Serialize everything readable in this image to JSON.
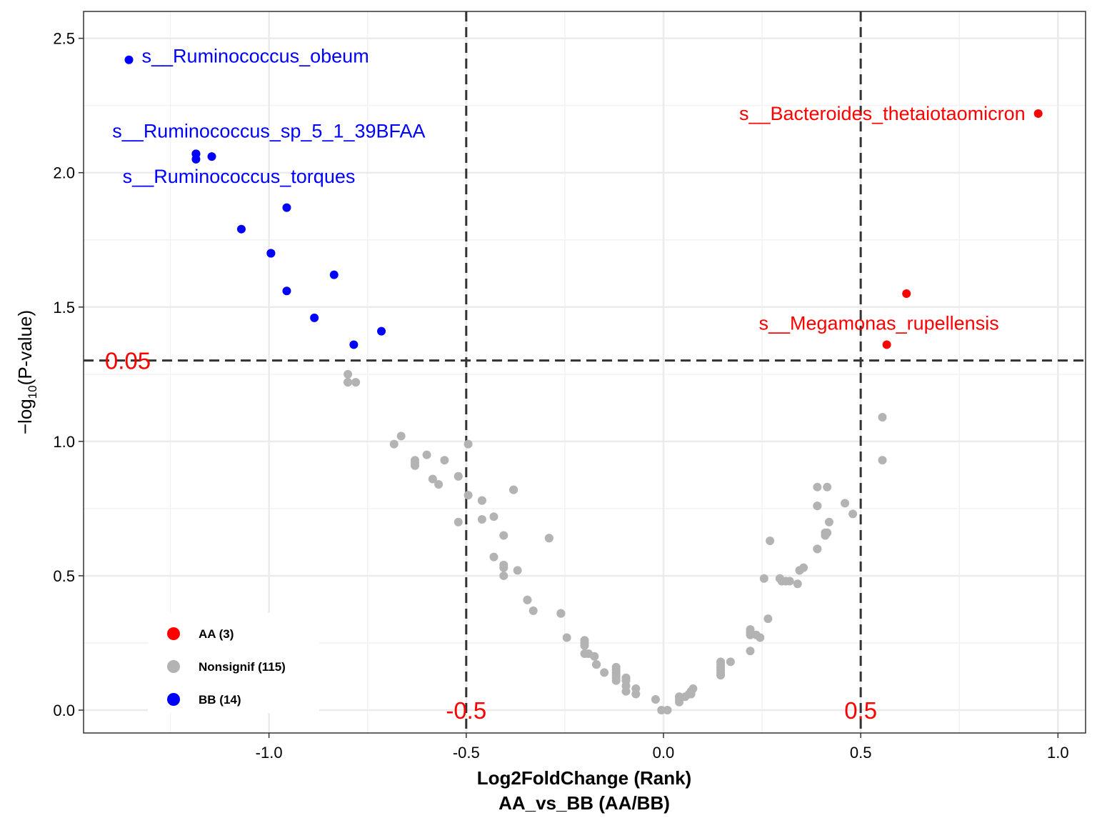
{
  "chart_data": {
    "type": "scatter",
    "xlabel": "Log2FoldChange (Rank)",
    "xlabel2": "AA_vs_BB (AA/BB)",
    "ylabel": "-log10(P-value)",
    "xlim": [
      -1.47,
      1.07
    ],
    "ylim": [
      -0.085,
      2.6
    ],
    "x_ticks": [
      {
        "value": -1.0,
        "label": "-1.0"
      },
      {
        "value": -0.5,
        "label": "-0.5"
      },
      {
        "value": 0.0,
        "label": "0.0"
      },
      {
        "value": 0.5,
        "label": "0.5"
      },
      {
        "value": 1.0,
        "label": "1.0"
      }
    ],
    "y_ticks": [
      {
        "value": 0.0,
        "label": "0.0"
      },
      {
        "value": 0.5,
        "label": "0.5"
      },
      {
        "value": 1.0,
        "label": "1.0"
      },
      {
        "value": 1.5,
        "label": "1.5"
      },
      {
        "value": 2.0,
        "label": "2.0"
      },
      {
        "value": 2.5,
        "label": "2.5"
      }
    ],
    "grid": true,
    "legend_position": "bottom-left",
    "colors": {
      "AA": "#ff0000",
      "Nonsignif": "#b3b3b3",
      "BB": "#0000ff"
    },
    "reference_lines": [
      {
        "axis": "y",
        "value": 1.301,
        "label": "0.05"
      },
      {
        "axis": "x",
        "value": -0.5,
        "label": "-0.5"
      },
      {
        "axis": "x",
        "value": 0.5,
        "label": "0.5"
      }
    ],
    "series": [
      {
        "name": "AA (3)",
        "group": "AA",
        "points": [
          [
            0.95,
            2.22
          ],
          [
            0.616,
            1.55
          ],
          [
            0.566,
            1.36
          ]
        ]
      },
      {
        "name": "Nonsignif (115)",
        "group": "Nonsignif",
        "points": [
          [
            -0.8,
            1.25
          ],
          [
            -0.8,
            1.22
          ],
          [
            -0.78,
            1.22
          ],
          [
            -0.665,
            1.02
          ],
          [
            -0.683,
            0.99
          ],
          [
            -0.6,
            0.95
          ],
          [
            -0.63,
            0.93
          ],
          [
            -0.63,
            0.91
          ],
          [
            -0.555,
            0.93
          ],
          [
            -0.585,
            0.86
          ],
          [
            -0.57,
            0.84
          ],
          [
            -0.52,
            0.87
          ],
          [
            -0.495,
            0.99
          ],
          [
            -0.495,
            0.8
          ],
          [
            -0.46,
            0.78
          ],
          [
            -0.38,
            0.82
          ],
          [
            -0.38,
            0.82
          ],
          [
            -0.52,
            0.7
          ],
          [
            -0.46,
            0.71
          ],
          [
            -0.43,
            0.72
          ],
          [
            -0.405,
            0.65
          ],
          [
            -0.29,
            0.64
          ],
          [
            -0.29,
            0.64
          ],
          [
            -0.43,
            0.57
          ],
          [
            -0.405,
            0.53
          ],
          [
            -0.37,
            0.52
          ],
          [
            -0.405,
            0.5
          ],
          [
            -0.345,
            0.41
          ],
          [
            -0.33,
            0.37
          ],
          [
            -0.26,
            0.36
          ],
          [
            -0.26,
            0.36
          ],
          [
            -0.245,
            0.27
          ],
          [
            -0.2,
            0.26
          ],
          [
            -0.2,
            0.24
          ],
          [
            -0.2,
            0.21
          ],
          [
            -0.19,
            0.21
          ],
          [
            -0.175,
            0.2
          ],
          [
            -0.17,
            0.17
          ],
          [
            -0.15,
            0.14
          ],
          [
            -0.12,
            0.16
          ],
          [
            -0.12,
            0.15
          ],
          [
            -0.12,
            0.13
          ],
          [
            -0.12,
            0.12
          ],
          [
            -0.12,
            0.11
          ],
          [
            -0.095,
            0.12
          ],
          [
            -0.095,
            0.12
          ],
          [
            -0.095,
            0.11
          ],
          [
            -0.095,
            0.09
          ],
          [
            -0.095,
            0.07
          ],
          [
            -0.07,
            0.08
          ],
          [
            -0.07,
            0.06
          ],
          [
            -0.02,
            0.04
          ],
          [
            -0.005,
            0.0
          ],
          [
            0.01,
            0.0
          ],
          [
            0.04,
            0.05
          ],
          [
            0.04,
            0.04
          ],
          [
            0.04,
            0.03
          ],
          [
            0.055,
            0.05
          ],
          [
            0.065,
            0.06
          ],
          [
            0.07,
            0.07
          ],
          [
            0.075,
            0.08
          ],
          [
            0.07,
            0.06
          ],
          [
            0.145,
            0.18
          ],
          [
            0.145,
            0.17
          ],
          [
            0.145,
            0.16
          ],
          [
            0.145,
            0.15
          ],
          [
            0.145,
            0.14
          ],
          [
            0.145,
            0.13
          ],
          [
            0.17,
            0.18
          ],
          [
            0.22,
            0.3
          ],
          [
            0.22,
            0.28
          ],
          [
            0.235,
            0.28
          ],
          [
            0.245,
            0.27
          ],
          [
            0.22,
            0.22
          ],
          [
            0.265,
            0.34
          ],
          [
            0.255,
            0.49
          ],
          [
            0.295,
            0.49
          ],
          [
            0.31,
            0.48
          ],
          [
            0.3,
            0.48
          ],
          [
            0.27,
            0.63
          ],
          [
            0.32,
            0.48
          ],
          [
            0.34,
            0.47
          ],
          [
            0.345,
            0.52
          ],
          [
            0.355,
            0.53
          ],
          [
            0.39,
            0.6
          ],
          [
            0.39,
            0.6
          ],
          [
            0.41,
            0.65
          ],
          [
            0.415,
            0.66
          ],
          [
            0.42,
            0.7
          ],
          [
            0.39,
            0.76
          ],
          [
            0.39,
            0.83
          ],
          [
            0.415,
            0.83
          ],
          [
            0.46,
            0.77
          ],
          [
            0.48,
            0.73
          ],
          [
            0.555,
            1.09
          ],
          [
            0.555,
            0.93
          ],
          [
            -0.52,
            0.87
          ],
          [
            -0.63,
            0.92
          ],
          [
            -0.46,
            0.78
          ],
          [
            -0.405,
            0.54
          ],
          [
            -0.345,
            0.41
          ],
          [
            -0.26,
            0.36
          ],
          [
            -0.2,
            0.25
          ],
          [
            -0.095,
            0.12
          ],
          [
            -0.12,
            0.14
          ],
          [
            0.04,
            0.05
          ],
          [
            0.145,
            0.16
          ],
          [
            0.22,
            0.29
          ],
          [
            0.295,
            0.49
          ],
          [
            0.345,
            0.52
          ],
          [
            0.41,
            0.66
          ],
          [
            0.39,
            0.76
          ],
          [
            -0.8,
            1.22
          ],
          [
            0.07,
            0.07
          ],
          [
            -0.17,
            0.17
          ]
        ]
      },
      {
        "name": "BB (14)",
        "group": "BB",
        "points": [
          [
            -1.355,
            2.42
          ],
          [
            -1.185,
            2.07
          ],
          [
            -1.185,
            2.05
          ],
          [
            -1.145,
            2.06
          ],
          [
            -1.07,
            1.79
          ],
          [
            -0.955,
            1.87
          ],
          [
            -0.995,
            1.7
          ],
          [
            -0.835,
            1.62
          ],
          [
            -0.955,
            1.56
          ],
          [
            -0.885,
            1.46
          ],
          [
            -0.715,
            1.41
          ],
          [
            -0.785,
            1.36
          ],
          [
            -1.185,
            2.07
          ],
          [
            -0.995,
            1.7
          ]
        ]
      }
    ],
    "point_labels": [
      {
        "text": "s__Ruminococcus_obeum",
        "x": -1.355,
        "y": 2.42,
        "group": "BB"
      },
      {
        "text": "s__Ruminococcus_sp_5_1_39BFAA",
        "x": -1.185,
        "y": 2.07,
        "group": "BB"
      },
      {
        "text": "s__Ruminococcus_torques",
        "x": -1.145,
        "y": 2.06,
        "group": "BB"
      },
      {
        "text": "s__Bacteroides_thetaiotaomicron",
        "x": 0.95,
        "y": 2.22,
        "group": "AA"
      },
      {
        "text": "s__Megamonas_rupellensis",
        "x": 0.566,
        "y": 1.36,
        "group": "AA"
      }
    ]
  }
}
